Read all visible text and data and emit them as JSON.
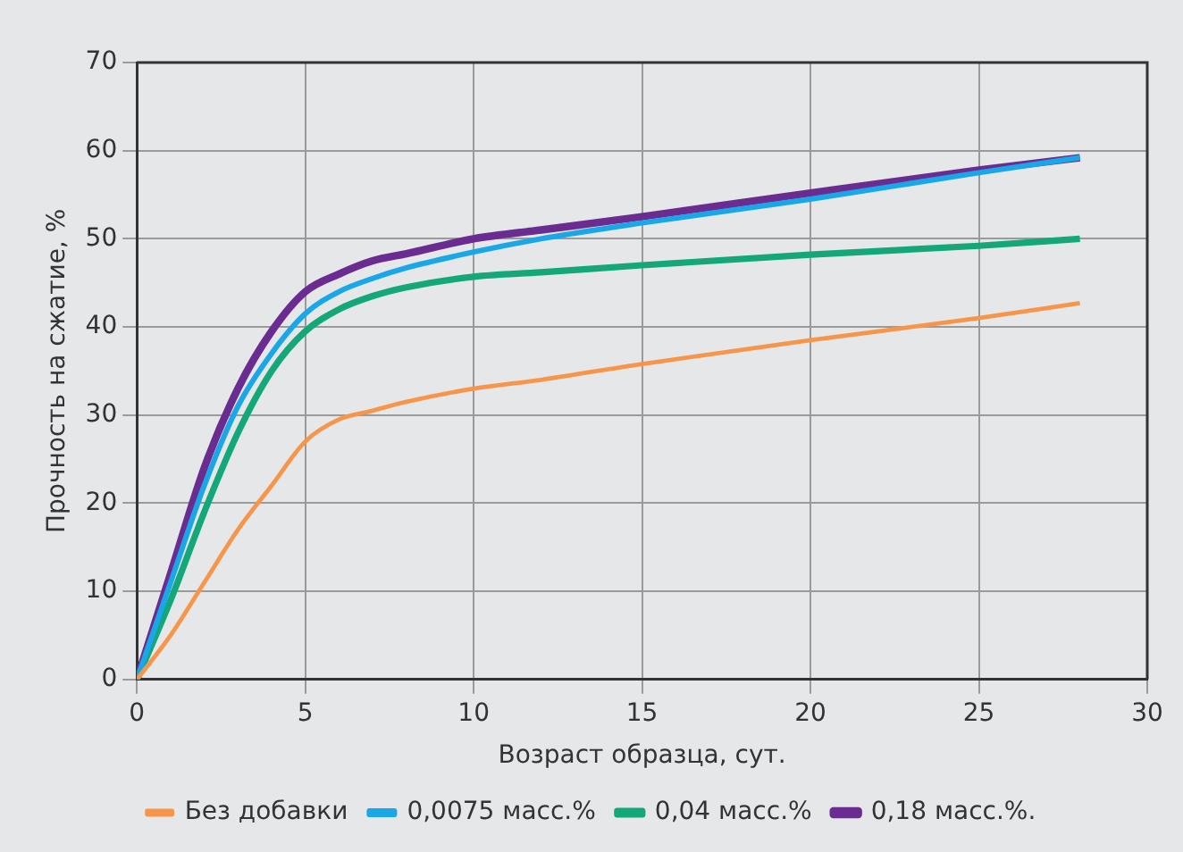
{
  "chart_data": {
    "type": "line",
    "xlabel": "Возраст образца, сут.",
    "ylabel": "Прочность на сжатие, %",
    "x": [
      0,
      1,
      2,
      3,
      4,
      5,
      6,
      7,
      8,
      10,
      12,
      15,
      20,
      25,
      28
    ],
    "series": [
      {
        "name": "Без добавки",
        "color": "#f7964a",
        "values": [
          0,
          5,
          11,
          17,
          22,
          27,
          29.5,
          30.5,
          31.5,
          33,
          34,
          35.8,
          38.5,
          41,
          42.7
        ]
      },
      {
        "name": "0,0075 масс.%",
        "color": "#1aa7e8",
        "values": [
          0,
          11,
          22,
          31,
          37,
          41.5,
          44,
          45.5,
          46.7,
          48.5,
          50,
          51.8,
          54.5,
          57.5,
          59.2
        ]
      },
      {
        "name": "0,04 масс.%",
        "color": "#13a77a",
        "values": [
          0,
          9,
          19,
          28,
          35,
          39.5,
          42,
          43.5,
          44.5,
          45.7,
          46.2,
          47,
          48.2,
          49.2,
          50
        ]
      },
      {
        "name": "0,18 масс.%.",
        "color": "#6a2c91",
        "values": [
          0,
          12,
          24,
          33,
          39.5,
          44,
          46,
          47.5,
          48.3,
          50,
          51,
          52.5,
          55.2,
          57.8,
          59.2
        ]
      }
    ],
    "xlim": [
      0,
      30
    ],
    "xticks": [
      0,
      5,
      10,
      15,
      20,
      25,
      30
    ],
    "ylim": [
      0,
      70
    ],
    "yticks": [
      0,
      10,
      20,
      30,
      40,
      50,
      60,
      70
    ],
    "grid": true,
    "legend": "bottom",
    "marker": "none",
    "line_style": "solid"
  }
}
